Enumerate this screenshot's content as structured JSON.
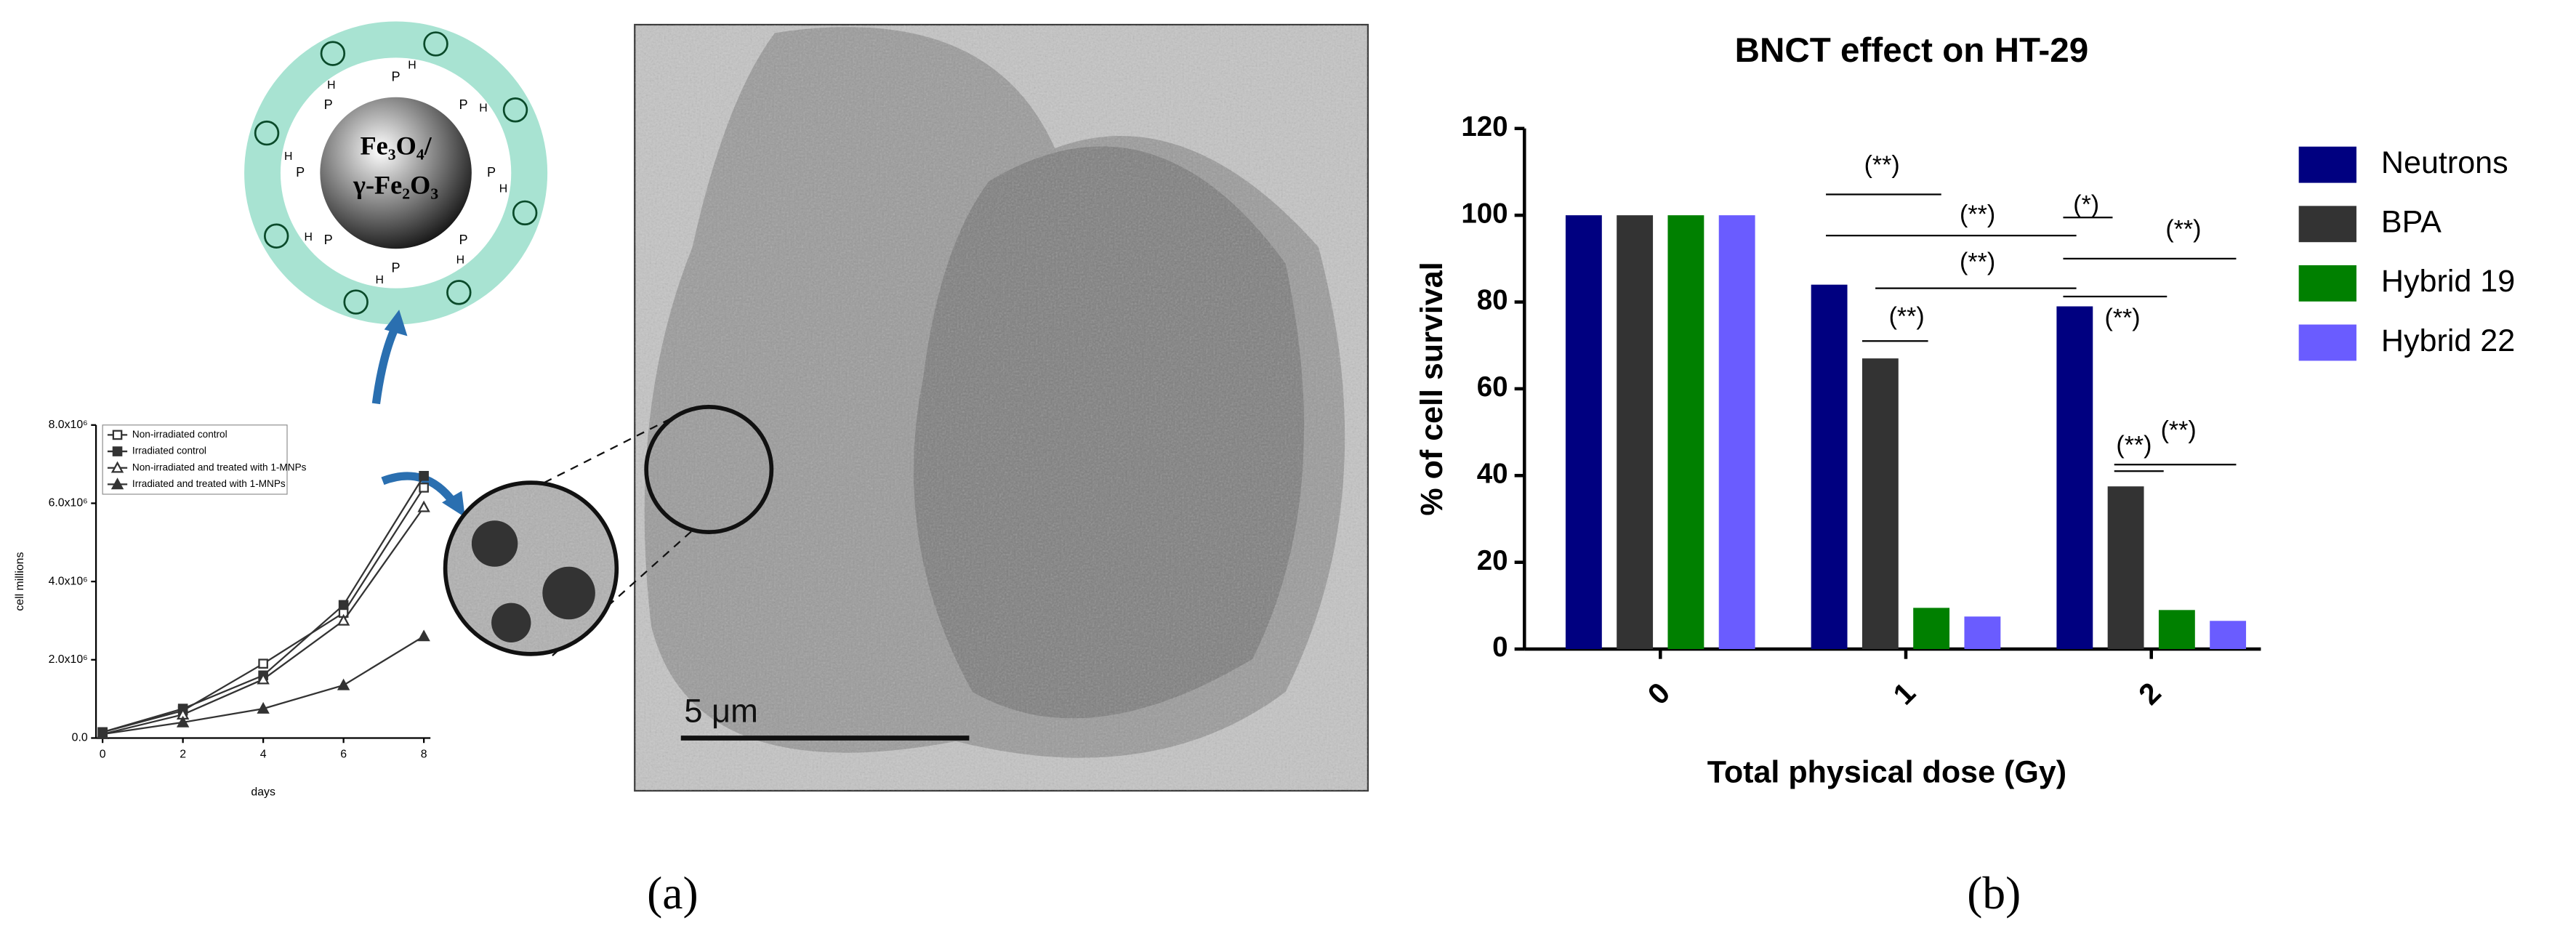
{
  "chart_data": [
    {
      "type": "line",
      "xlabel": "days",
      "ylabel": "cell millions",
      "x": [
        0,
        2,
        4,
        6,
        8
      ],
      "xlim": [
        0,
        8
      ],
      "xticks": [
        0,
        2,
        4,
        6,
        8
      ],
      "ylim": [
        0,
        8000000
      ],
      "yticks": [
        {
          "value": 0,
          "label": "0.0"
        },
        {
          "value": 2000000,
          "label": "2.0x10⁶"
        },
        {
          "value": 4000000,
          "label": "4.0x10⁶"
        },
        {
          "value": 6000000,
          "label": "6.0x10⁶"
        },
        {
          "value": 8000000,
          "label": "8.0x10⁶"
        }
      ],
      "series": [
        {
          "name": "Non-irradiated control",
          "color": "#333333",
          "marker": "square-open",
          "values": [
            150000,
            700000,
            1900000,
            3200000,
            6400000
          ]
        },
        {
          "name": "Irradiated control",
          "color": "#333333",
          "marker": "square-filled",
          "values": [
            150000,
            750000,
            1600000,
            3400000,
            6700000
          ]
        },
        {
          "name": "Non-irradiated and treated with 1-MNPs",
          "color": "#333333",
          "marker": "triangle-open",
          "values": [
            100000,
            600000,
            1500000,
            3000000,
            5900000
          ]
        },
        {
          "name": "Irradiated and treated with 1-MNPs",
          "color": "#333333",
          "marker": "triangle-filled",
          "values": [
            100000,
            400000,
            750000,
            1350000,
            2600000
          ]
        }
      ]
    },
    {
      "type": "bar",
      "title": "BNCT effect on HT-29",
      "xlabel": "Total physical dose (Gy)",
      "ylabel": "% of cell survival",
      "categories": [
        "0",
        "1",
        "2"
      ],
      "ylim": [
        0,
        120
      ],
      "yticks": [
        0,
        20,
        40,
        60,
        80,
        100,
        120
      ],
      "legend": "right",
      "series": [
        {
          "name": "Neutrons",
          "color": "#000080",
          "values": [
            100,
            84,
            79
          ]
        },
        {
          "name": "BPA",
          "color": "#333333",
          "values": [
            100,
            67,
            37.5
          ]
        },
        {
          "name": "Hybrid 19",
          "color": "#008000",
          "values": [
            100,
            9.5,
            9
          ]
        },
        {
          "name": "Hybrid 22",
          "color": "#6a5cff",
          "values": [
            100,
            7.5,
            6.5
          ]
        }
      ],
      "annotations": [
        "(**)",
        "(**)",
        "(**)",
        "(**)",
        "(*)",
        "(**)",
        "(**)",
        "(**)",
        "(**)"
      ]
    }
  ],
  "diagram": {
    "core_line1": "Fe₃O₄/",
    "core_line2": "γ-Fe₂O₃",
    "ring_groups": [
      {
        "p": "P",
        "h": "H"
      },
      {
        "p": "P",
        "h": "H"
      },
      {
        "p": "P",
        "h": "H"
      },
      {
        "p": "P",
        "h": "H"
      },
      {
        "p": "P",
        "h": "H"
      },
      {
        "p": "P",
        "h": "H"
      },
      {
        "p": "P",
        "h": "H"
      },
      {
        "p": "P",
        "h": "H"
      }
    ],
    "scale_bar": "5 μm"
  },
  "panel_labels": [
    "(a)",
    "(b)"
  ]
}
